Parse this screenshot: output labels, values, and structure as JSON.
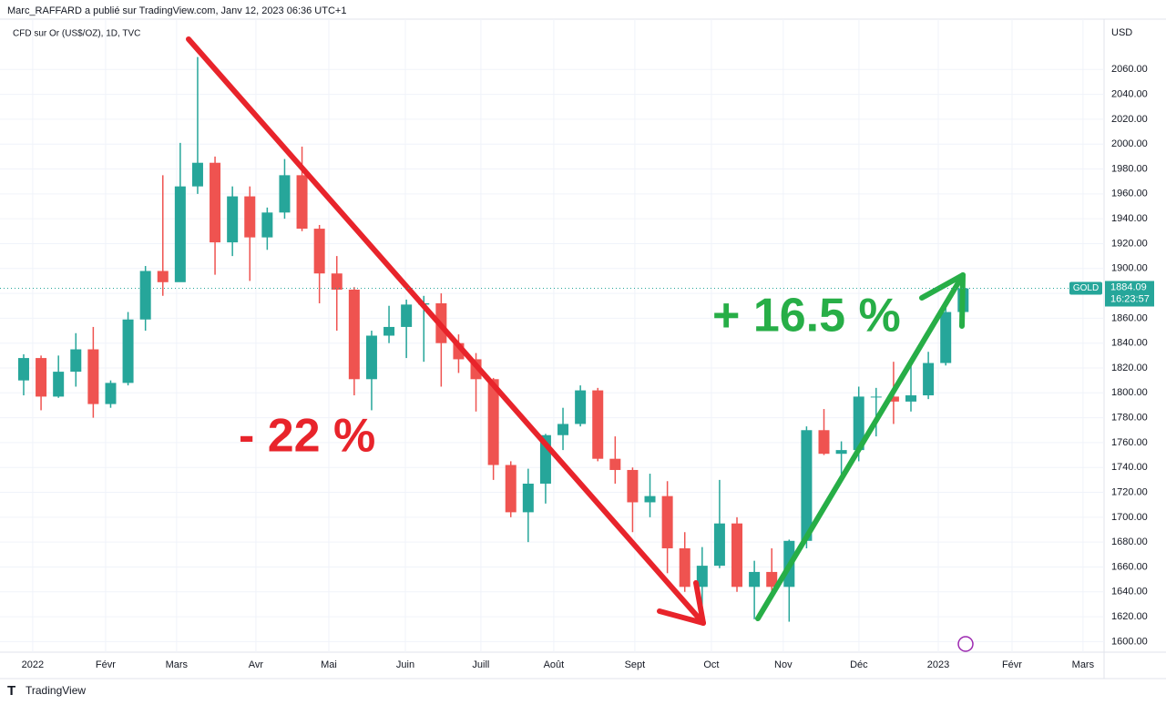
{
  "chart_data": {
    "type": "candlestick",
    "publisher": "Marc_RAFFARD a publié sur TradingView.com, Janv 12, 2023 06:36 UTC+1",
    "title": "CFD sur Or (US$/OZ), 1D, TVC",
    "y_axis_label": "USD",
    "price_label": {
      "symbol": "GOLD",
      "value": 1884.09,
      "countdown": "16:23:57"
    },
    "annotations": [
      "- 22 %",
      "+ 16.5 %"
    ],
    "footer": "TradingView",
    "up_color": "#26a69a",
    "down_color": "#ef5350",
    "grid": true,
    "open": [
      1810,
      1828,
      1797,
      1817,
      1835,
      1791,
      1808,
      1859,
      1898,
      1889,
      1966,
      1985,
      1921,
      1958,
      1925,
      1945,
      1975,
      1932,
      1896,
      1883,
      1811,
      1846,
      1853,
      1871,
      1872,
      1840,
      1827,
      1811,
      1742,
      1704,
      1727,
      1766,
      1775,
      1802,
      1747,
      1738,
      1712,
      1717,
      1675,
      1644,
      1661,
      1695,
      1644,
      1656,
      1644,
      1681,
      1770,
      1751,
      1754,
      1797,
      1797,
      1793,
      1798,
      1824,
      1865
    ],
    "high": [
      1831,
      1830,
      1830,
      1848,
      1853,
      1810,
      1865,
      1902,
      1975,
      2001,
      2070,
      1990,
      1966,
      1966,
      1949,
      1988,
      1998,
      1935,
      1910,
      1885,
      1850,
      1870,
      1875,
      1878,
      1880,
      1847,
      1832,
      1812,
      1745,
      1739,
      1767,
      1788,
      1806,
      1804,
      1765,
      1740,
      1735,
      1729,
      1688,
      1676,
      1730,
      1700,
      1665,
      1675,
      1682,
      1773,
      1787,
      1761,
      1805,
      1804,
      1825,
      1825,
      1833,
      1870,
      1886
    ],
    "low": [
      1798,
      1786,
      1796,
      1805,
      1780,
      1788,
      1806,
      1850,
      1878,
      1890,
      1960,
      1895,
      1910,
      1890,
      1915,
      1940,
      1930,
      1872,
      1850,
      1798,
      1786,
      1840,
      1828,
      1825,
      1805,
      1816,
      1785,
      1730,
      1700,
      1680,
      1711,
      1754,
      1773,
      1745,
      1727,
      1688,
      1700,
      1655,
      1640,
      1615,
      1659,
      1640,
      1618,
      1638,
      1616,
      1675,
      1750,
      1730,
      1745,
      1765,
      1775,
      1785,
      1795,
      1822,
      1860
    ],
    "close": [
      1828,
      1797,
      1817,
      1835,
      1791,
      1808,
      1859,
      1898,
      1889,
      1966,
      1985,
      1921,
      1958,
      1925,
      1945,
      1975,
      1932,
      1896,
      1883,
      1811,
      1846,
      1853,
      1871,
      1872,
      1840,
      1827,
      1811,
      1742,
      1704,
      1727,
      1766,
      1775,
      1802,
      1747,
      1738,
      1712,
      1717,
      1675,
      1644,
      1661,
      1695,
      1644,
      1656,
      1644,
      1681,
      1770,
      1751,
      1754,
      1797,
      1797,
      1793,
      1798,
      1824,
      1865,
      1884
    ],
    "xlim": [
      -1.36,
      62.1
    ],
    "xticks": [
      {
        "value": 0.52,
        "label": "2022"
      },
      {
        "value": 4.71,
        "label": "Févr"
      },
      {
        "value": 8.79,
        "label": "Mars"
      },
      {
        "value": 13.35,
        "label": "Avr"
      },
      {
        "value": 17.54,
        "label": "Mai"
      },
      {
        "value": 21.94,
        "label": "Juin"
      },
      {
        "value": 26.28,
        "label": "Juill"
      },
      {
        "value": 30.47,
        "label": "Août"
      },
      {
        "value": 35.13,
        "label": "Sept"
      },
      {
        "value": 39.53,
        "label": "Oct"
      },
      {
        "value": 43.66,
        "label": "Nov"
      },
      {
        "value": 48.01,
        "label": "Déc"
      },
      {
        "value": 52.57,
        "label": "2023"
      },
      {
        "value": 56.81,
        "label": "Févr"
      },
      {
        "value": 60.89,
        "label": "Mars"
      }
    ],
    "ylim": [
      1591.5,
      2100.5
    ],
    "yticks": [
      {
        "value": 1600,
        "label": "1600.00"
      },
      {
        "value": 1620,
        "label": "1620.00"
      },
      {
        "value": 1640,
        "label": "1640.00"
      },
      {
        "value": 1660,
        "label": "1660.00"
      },
      {
        "value": 1680,
        "label": "1680.00"
      },
      {
        "value": 1700,
        "label": "1700.00"
      },
      {
        "value": 1720,
        "label": "1720.00"
      },
      {
        "value": 1740,
        "label": "1740.00"
      },
      {
        "value": 1760,
        "label": "1760.00"
      },
      {
        "value": 1780,
        "label": "1780.00"
      },
      {
        "value": 1800,
        "label": "1800.00"
      },
      {
        "value": 1820,
        "label": "1820.00"
      },
      {
        "value": 1840,
        "label": "1840.00"
      },
      {
        "value": 1860,
        "label": "1860.00"
      },
      {
        "value": 1880,
        "label": "1880.00"
      },
      {
        "value": 1900,
        "label": "1900.00"
      },
      {
        "value": 1920,
        "label": "1920.00"
      },
      {
        "value": 1940,
        "label": "1940.00"
      },
      {
        "value": 1960,
        "label": "1960.00"
      },
      {
        "value": 1980,
        "label": "1980.00"
      },
      {
        "value": 2000,
        "label": "2000.00"
      },
      {
        "value": 2020,
        "label": "2020.00"
      },
      {
        "value": 2040,
        "label": "2040.00"
      },
      {
        "value": 2060,
        "label": "2060.00"
      }
    ]
  }
}
